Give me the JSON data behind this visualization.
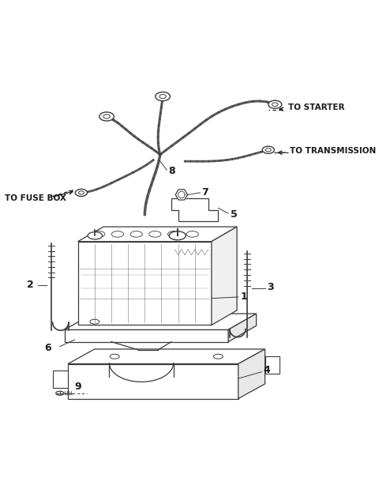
{
  "bg_color": "#ffffff",
  "line_color": "#3a3a3a",
  "text_color": "#1a1a1a",
  "labels": {
    "to_starter": "TO STARTER",
    "to_transmission": "TO TRANSMISSION",
    "to_fuse_box": "TO FUSE BOX",
    "part1": "1",
    "part2": "2",
    "part3": "3",
    "part4": "4",
    "part5": "5",
    "part6": "6",
    "part7": "7",
    "part8": "8",
    "part9": "9"
  },
  "figsize": [
    4.8,
    6.19
  ],
  "dpi": 100
}
